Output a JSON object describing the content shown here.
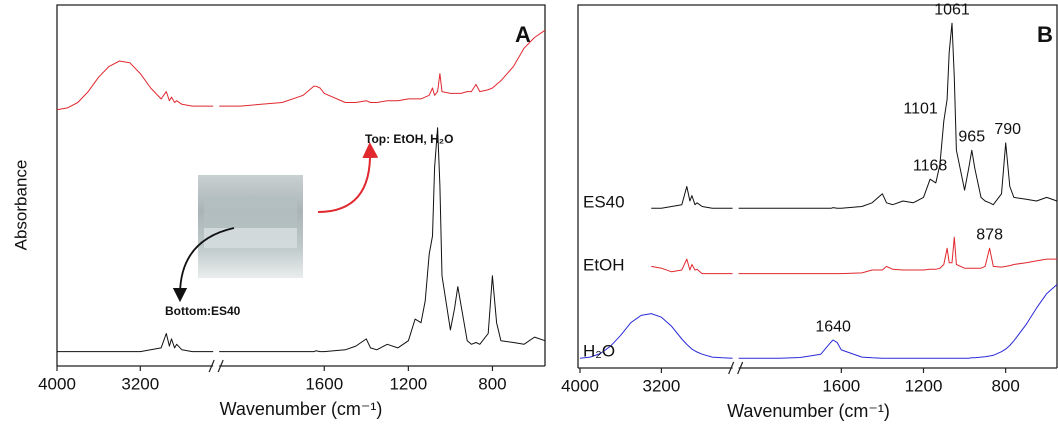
{
  "chart_data": [
    {
      "type": "line",
      "panel_label": "A",
      "x_label": "Wavenumber (cm⁻¹)",
      "y_label": "Absorbance",
      "xlim": [
        4000,
        550
      ],
      "xbreak": [
        2500,
        2100
      ],
      "ylim": [
        0,
        10
      ],
      "xticks": [
        4000,
        3200,
        1600,
        1200,
        800
      ],
      "x": [
        4000,
        3900,
        3800,
        3700,
        3600,
        3500,
        3400,
        3300,
        3200,
        3100,
        3000,
        2950,
        2920,
        2900,
        2870,
        2850,
        2800,
        2700,
        2600,
        2500,
        2100,
        2000,
        1900,
        1800,
        1700,
        1650,
        1640,
        1620,
        1600,
        1500,
        1450,
        1400,
        1380,
        1350,
        1300,
        1250,
        1200,
        1168,
        1140,
        1120,
        1101,
        1085,
        1075,
        1061,
        1050,
        1040,
        1000,
        980,
        965,
        950,
        920,
        900,
        878,
        860,
        820,
        800,
        780,
        760,
        700,
        650,
        600,
        550
      ],
      "series": [
        {
          "name": "Top: EtOH, H₂O",
          "color": "#e0282e",
          "values": [
            7.1,
            7.15,
            7.3,
            7.6,
            8.0,
            8.3,
            8.45,
            8.4,
            8.1,
            7.7,
            7.4,
            7.6,
            7.35,
            7.45,
            7.3,
            7.35,
            7.25,
            7.2,
            7.2,
            7.2,
            7.2,
            7.2,
            7.25,
            7.3,
            7.5,
            7.75,
            7.75,
            7.7,
            7.55,
            7.3,
            7.3,
            7.35,
            7.3,
            7.3,
            7.35,
            7.35,
            7.4,
            7.4,
            7.4,
            7.45,
            7.5,
            7.7,
            7.5,
            7.6,
            8.1,
            7.6,
            7.55,
            7.55,
            7.55,
            7.55,
            7.6,
            7.6,
            7.8,
            7.6,
            7.65,
            7.7,
            7.8,
            7.9,
            8.3,
            8.8,
            9.1,
            9.3
          ]
        },
        {
          "name": "Bottom:ES40",
          "color": "#111111",
          "values": [
            0.4,
            0.4,
            0.4,
            0.4,
            0.4,
            0.4,
            0.4,
            0.4,
            0.4,
            0.45,
            0.5,
            0.9,
            0.55,
            0.75,
            0.5,
            0.6,
            0.45,
            0.4,
            0.4,
            0.4,
            0.4,
            0.4,
            0.4,
            0.4,
            0.4,
            0.4,
            0.42,
            0.4,
            0.4,
            0.45,
            0.55,
            0.75,
            0.5,
            0.45,
            0.6,
            0.5,
            0.7,
            1.3,
            1.2,
            1.8,
            3.1,
            3.6,
            5.5,
            6.6,
            5.0,
            2.5,
            1.0,
            1.6,
            2.2,
            1.7,
            0.7,
            0.6,
            0.65,
            0.6,
            0.9,
            2.5,
            1.2,
            0.7,
            0.65,
            0.6,
            0.8,
            0.7
          ]
        }
      ]
    },
    {
      "type": "line",
      "panel_label": "B",
      "x_label": "Wavenumber (cm⁻¹)",
      "xlim": [
        4000,
        550
      ],
      "xbreak": [
        2500,
        2100
      ],
      "ylim": [
        0,
        10
      ],
      "xticks": [
        4000,
        3200,
        1600,
        1200,
        800
      ],
      "x": [
        4000,
        3900,
        3800,
        3700,
        3600,
        3500,
        3400,
        3300,
        3200,
        3100,
        3000,
        2950,
        2920,
        2900,
        2870,
        2850,
        2800,
        2700,
        2600,
        2500,
        2100,
        2000,
        1900,
        1800,
        1700,
        1650,
        1640,
        1620,
        1600,
        1500,
        1450,
        1400,
        1380,
        1350,
        1300,
        1250,
        1200,
        1168,
        1140,
        1120,
        1101,
        1085,
        1075,
        1061,
        1050,
        1040,
        1000,
        980,
        965,
        950,
        920,
        900,
        878,
        860,
        820,
        800,
        780,
        760,
        700,
        650,
        600,
        550
      ],
      "series": [
        {
          "name": "ES40",
          "color": "#111111",
          "peaks": [
            1168,
            1101,
            1061,
            965,
            790
          ],
          "values": [
            null,
            null,
            null,
            null,
            null,
            null,
            null,
            4.4,
            4.4,
            4.45,
            4.5,
            5.0,
            4.6,
            4.75,
            4.5,
            4.55,
            4.45,
            4.4,
            4.4,
            4.4,
            4.4,
            4.4,
            4.4,
            4.4,
            4.4,
            4.4,
            4.42,
            4.4,
            4.4,
            4.45,
            4.55,
            4.8,
            4.55,
            4.5,
            4.6,
            4.55,
            4.7,
            5.2,
            5.1,
            5.6,
            6.8,
            7.4,
            8.7,
            9.5,
            8.0,
            6.0,
            4.9,
            5.5,
            6.0,
            5.5,
            4.7,
            4.6,
            4.55,
            4.5,
            4.8,
            6.2,
            5.0,
            4.7,
            4.65,
            4.6,
            4.7,
            4.6
          ]
        },
        {
          "name": "EtOH",
          "color": "#e0282e",
          "peaks": [
            878
          ],
          "values": [
            null,
            null,
            null,
            null,
            null,
            null,
            null,
            2.8,
            2.75,
            2.65,
            2.7,
            3.0,
            2.7,
            2.85,
            2.7,
            2.72,
            2.6,
            2.6,
            2.6,
            2.6,
            2.6,
            2.6,
            2.6,
            2.6,
            2.6,
            2.6,
            2.6,
            2.6,
            2.6,
            2.62,
            2.7,
            2.7,
            2.8,
            2.72,
            2.7,
            2.7,
            2.7,
            2.72,
            2.72,
            2.75,
            2.85,
            3.3,
            2.9,
            2.9,
            3.6,
            2.85,
            2.75,
            2.75,
            2.75,
            2.75,
            2.75,
            2.8,
            3.3,
            2.8,
            2.78,
            2.8,
            2.82,
            2.85,
            2.9,
            2.95,
            3.0,
            3.0
          ]
        },
        {
          "name": "H₂O",
          "color": "#2a2ad8",
          "peaks": [
            1640
          ],
          "values": [
            0.27,
            0.3,
            0.4,
            0.6,
            0.9,
            1.25,
            1.45,
            1.5,
            1.4,
            1.15,
            0.8,
            0.65,
            0.57,
            0.52,
            0.47,
            0.44,
            0.38,
            0.3,
            0.28,
            0.27,
            0.27,
            0.27,
            0.27,
            0.29,
            0.38,
            0.72,
            0.77,
            0.7,
            0.5,
            0.3,
            0.28,
            0.27,
            0.27,
            0.27,
            0.27,
            0.27,
            0.27,
            0.27,
            0.27,
            0.27,
            0.27,
            0.27,
            0.27,
            0.27,
            0.27,
            0.27,
            0.27,
            0.27,
            0.28,
            0.28,
            0.3,
            0.31,
            0.33,
            0.35,
            0.45,
            0.52,
            0.62,
            0.75,
            1.2,
            1.65,
            2.05,
            2.3
          ]
        }
      ]
    }
  ]
}
